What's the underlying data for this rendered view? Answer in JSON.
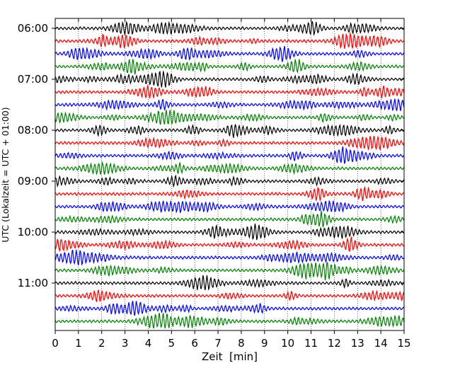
{
  "chart_data": {
    "type": "line",
    "title": "",
    "xlabel": "Zeit  [min]",
    "ylabel": "UTC (Lokalzeit = UTC + 01:00)",
    "xlim": [
      0,
      15
    ],
    "x_ticks": [
      0,
      1,
      2,
      3,
      4,
      5,
      6,
      7,
      8,
      9,
      10,
      11,
      12,
      13,
      14,
      15
    ],
    "x_tick_labels": [
      "0",
      "1",
      "2",
      "3",
      "4",
      "5",
      "6",
      "7",
      "8",
      "9",
      "10",
      "11",
      "12",
      "13",
      "14",
      "15"
    ],
    "y_tick_labels": [
      "06:00",
      "07:00",
      "08:00",
      "09:00",
      "10:00",
      "11:00"
    ],
    "y_tick_rows": [
      0,
      4,
      8,
      12,
      16,
      20
    ],
    "vertical_grid": true,
    "grid_style": "dotted",
    "trace_colors": [
      "#000000",
      "#ff0000",
      "#0000ff",
      "#008000"
    ],
    "num_traces": 24,
    "trace_interval_min": 15
  }
}
